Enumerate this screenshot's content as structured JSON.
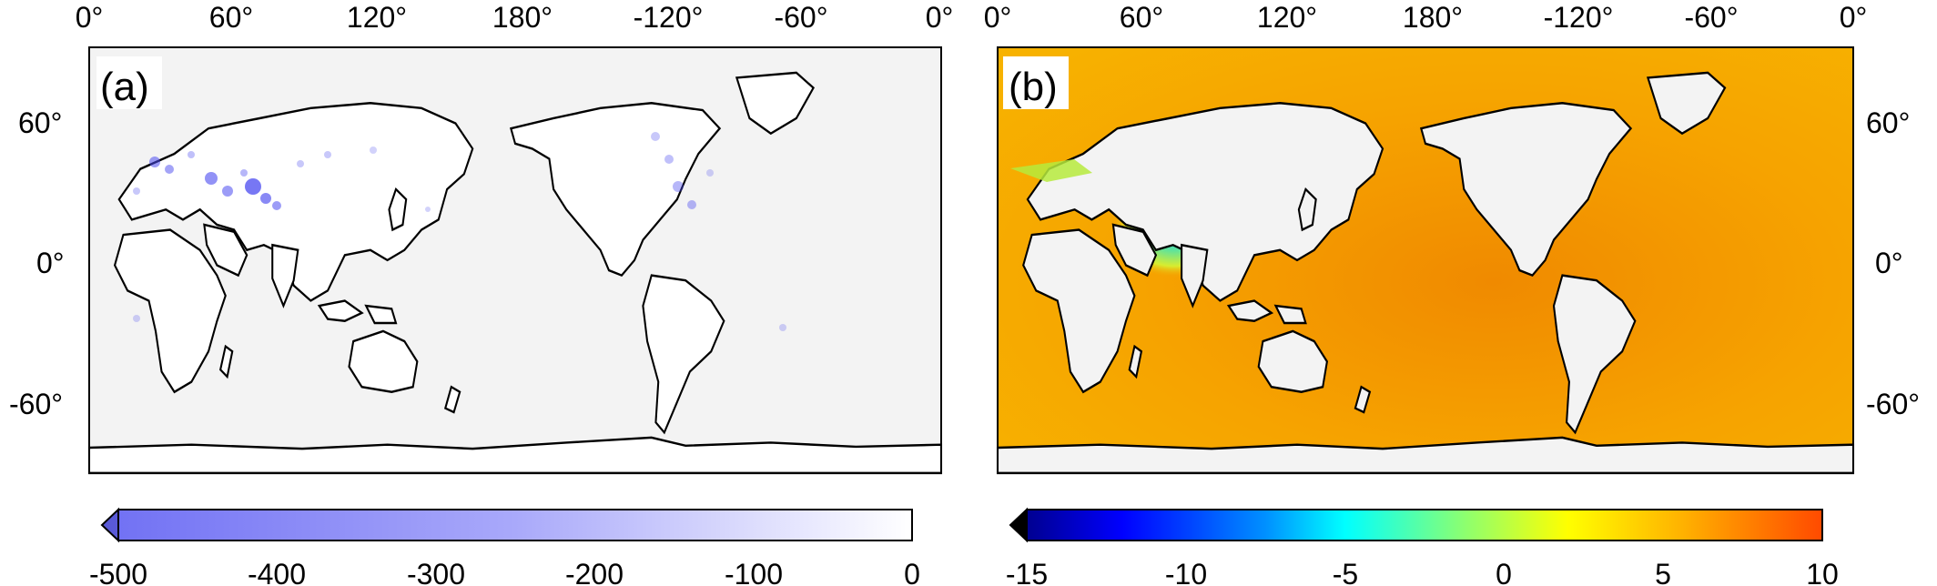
{
  "top_lon_labels": [
    "0°",
    "60°",
    "120°",
    "180°",
    "-120°",
    "-60°",
    "0°"
  ],
  "left_lat_labels": [
    "60°",
    "0°",
    "-60°"
  ],
  "right_lat_labels": [
    "60°",
    "0°",
    "-60°"
  ],
  "panel_a": {
    "label": "(a)",
    "colorbar": {
      "ticks": [
        "-500",
        "-400",
        "-300",
        "-200",
        "-100",
        "0"
      ],
      "range": [
        -500,
        0
      ],
      "colors": [
        "#6d6df2",
        "#ffffff"
      ],
      "extend": "min"
    }
  },
  "panel_b": {
    "label": "(b)",
    "colorbar": {
      "ticks": [
        "-15",
        "-10",
        "-5",
        "0",
        "5",
        "10"
      ],
      "range": [
        -15,
        10
      ],
      "colors": [
        "#00008f",
        "#0000ff",
        "#00b4ff",
        "#00ffff",
        "#7fff7f",
        "#ffff00",
        "#ffb000",
        "#ff4000"
      ],
      "extend": "min"
    }
  },
  "colors": {
    "land_background": "#f3f3f3",
    "ocean_b": "#f6a800",
    "coastline": "#000000"
  }
}
